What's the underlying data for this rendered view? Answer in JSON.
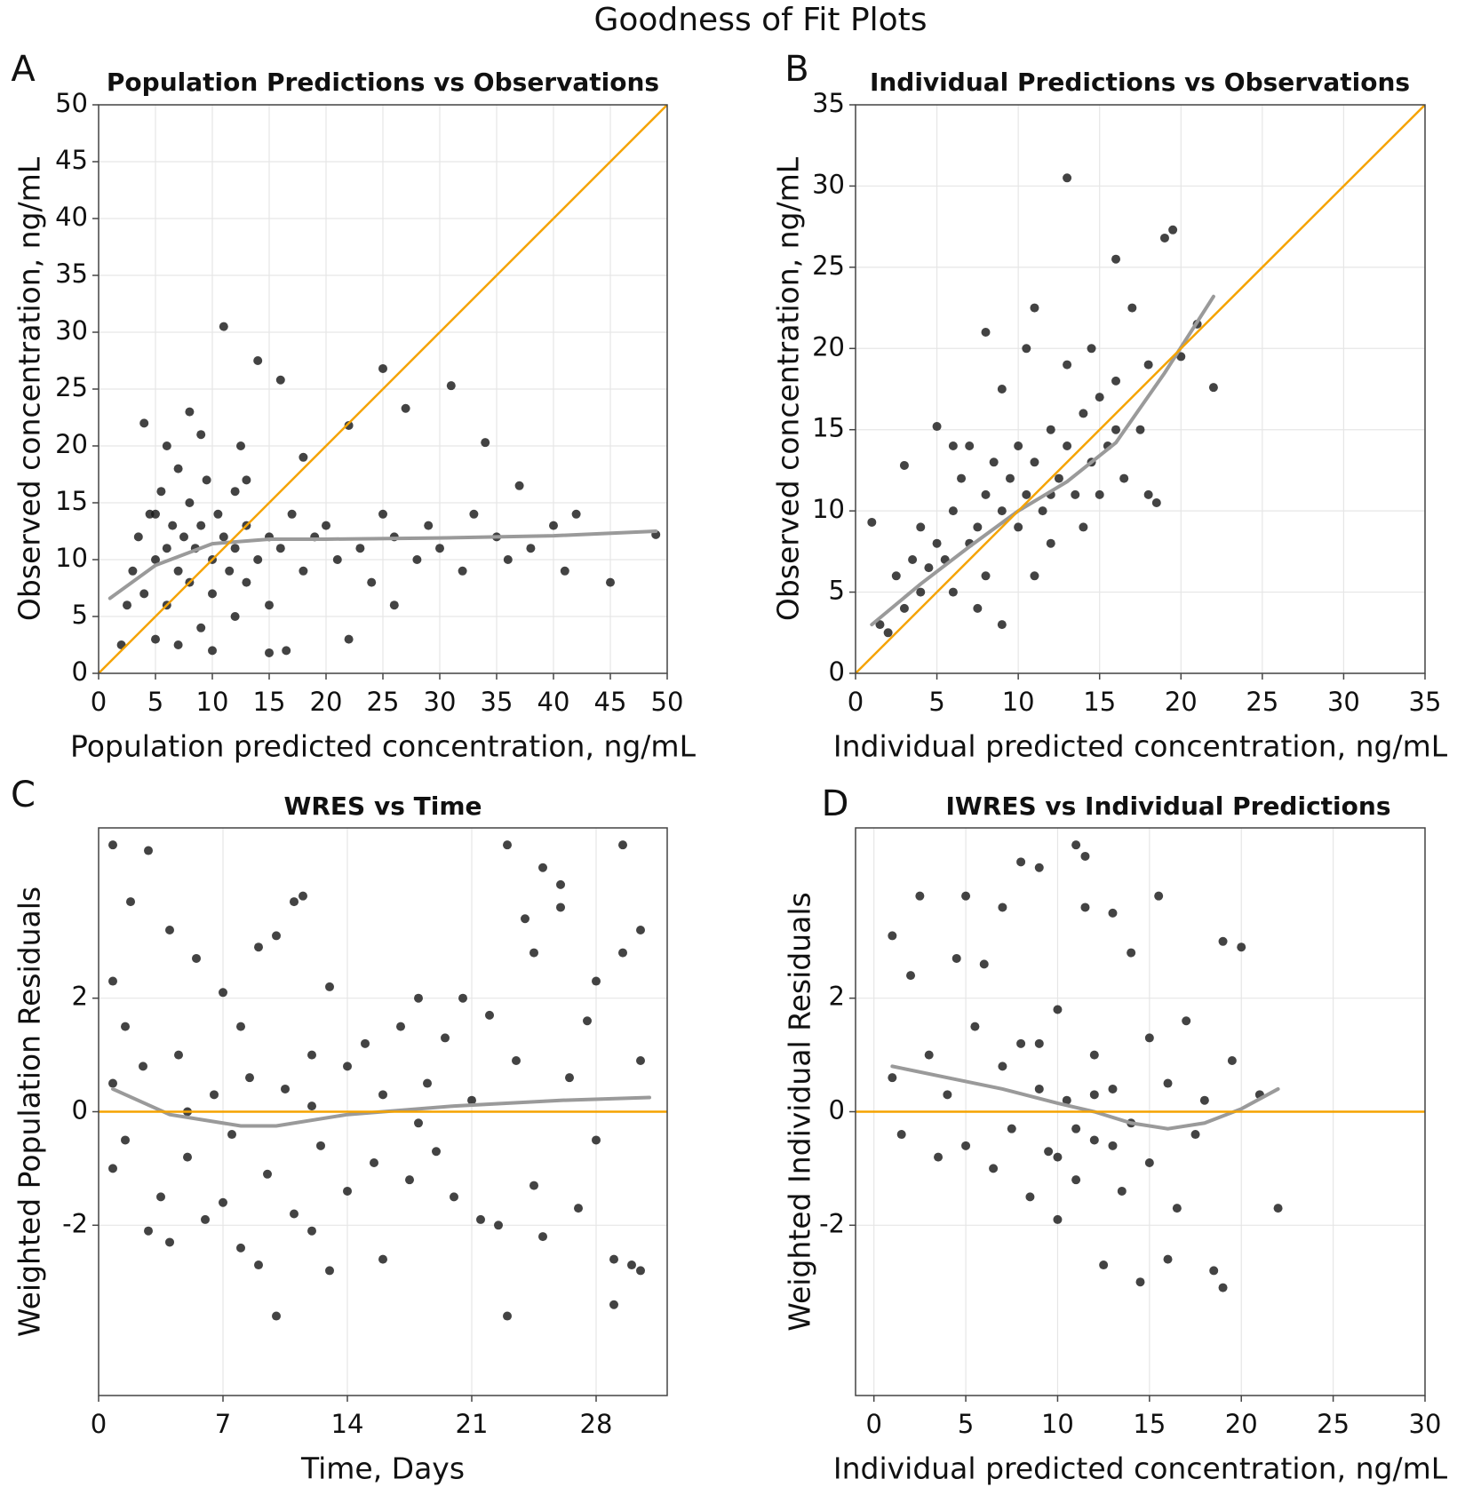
{
  "title": "Goodness of Fit Plots",
  "chart_data": [
    {
      "type": "scatter",
      "panel": "A",
      "title": "Population Predictions vs Observations",
      "xlabel": "Population predicted concentration, ng/mL",
      "ylabel": "Observed concentration, ng/mL",
      "xlim": [
        0,
        50
      ],
      "ylim": [
        0,
        50
      ],
      "xticks": [
        0,
        5,
        10,
        15,
        20,
        25,
        30,
        35,
        40,
        45,
        50
      ],
      "yticks": [
        0,
        5,
        10,
        15,
        20,
        25,
        30,
        35,
        40,
        45,
        50
      ],
      "grid": true,
      "point_color": "#1a1a1a",
      "reference_line": "identity",
      "reference_color": "#f5a300",
      "x": [
        2,
        3,
        3.5,
        4,
        4.5,
        5,
        5,
        5.5,
        6,
        6,
        6.5,
        7,
        7,
        7.5,
        8,
        8,
        8.5,
        9,
        9,
        9.5,
        10,
        10,
        10.5,
        11,
        11,
        11.5,
        12,
        12,
        12.5,
        13,
        13,
        14,
        14,
        15,
        15,
        16,
        16,
        17,
        18,
        19,
        20,
        21,
        22,
        23,
        24,
        25,
        25,
        26,
        27,
        28,
        29,
        30,
        31,
        32,
        33,
        34,
        35,
        36,
        37,
        38,
        40,
        41,
        42,
        45,
        49,
        16.5,
        2.5,
        4,
        6,
        8,
        10,
        12,
        7,
        9,
        5,
        13,
        18,
        22,
        15,
        26
      ],
      "y": [
        2.5,
        9,
        12,
        7,
        14,
        10,
        3,
        16,
        11,
        6,
        13,
        9,
        18,
        12,
        8,
        15,
        11,
        13,
        4,
        17,
        10,
        7,
        14,
        12,
        30.5,
        9,
        16,
        11,
        20,
        8,
        13,
        10,
        27.5,
        12,
        6,
        11,
        25.8,
        14,
        9,
        12,
        13,
        10,
        21.8,
        11,
        8,
        14,
        26.8,
        12,
        23.3,
        10,
        13,
        11,
        25.3,
        9,
        14,
        20.3,
        12,
        10,
        16.5,
        11,
        13,
        9,
        14,
        8,
        12.2,
        2,
        6,
        22,
        20,
        23,
        2,
        5,
        2.5,
        21,
        14,
        17,
        19,
        3,
        1.8,
        6
      ],
      "smooth": {
        "color": "#9a9a9a",
        "x": [
          1,
          5,
          10,
          15,
          20,
          30,
          40,
          49
        ],
        "y": [
          6.6,
          9.5,
          11.4,
          11.8,
          11.8,
          11.9,
          12.1,
          12.5
        ]
      }
    },
    {
      "type": "scatter",
      "panel": "B",
      "title": "Individual Predictions vs Observations",
      "xlabel": "Individual predicted concentration, ng/mL",
      "ylabel": "Observed concentration, ng/mL",
      "xlim": [
        0,
        35
      ],
      "ylim": [
        0,
        35
      ],
      "xticks": [
        0,
        5,
        10,
        15,
        20,
        25,
        30,
        35
      ],
      "yticks": [
        0,
        5,
        10,
        15,
        20,
        25,
        30,
        35
      ],
      "grid": true,
      "point_color": "#1a1a1a",
      "reference_line": "identity",
      "reference_color": "#f5a300",
      "x": [
        1,
        1.5,
        2,
        2.5,
        3,
        3,
        3.5,
        4,
        4,
        4.5,
        5,
        5,
        5.5,
        6,
        6,
        6.5,
        7,
        7,
        7.5,
        8,
        8,
        8.5,
        9,
        9,
        9.5,
        10,
        10,
        10.5,
        11,
        11,
        11.5,
        12,
        12,
        12.5,
        13,
        13,
        13.5,
        14,
        14,
        14.5,
        15,
        15,
        15.5,
        16,
        16,
        16.5,
        17,
        17.5,
        18,
        18,
        19,
        19.5,
        20,
        22,
        21,
        9,
        6,
        11,
        13,
        10.5,
        8,
        7.5,
        12,
        14.5,
        16,
        18.5
      ],
      "y": [
        9.3,
        3,
        2.5,
        6,
        4,
        12.8,
        7,
        5,
        9,
        6.5,
        8,
        15.2,
        7,
        10,
        5,
        12,
        8,
        14,
        9,
        11,
        6,
        13,
        10,
        17.5,
        12,
        9,
        14,
        11,
        13,
        22.5,
        10,
        15,
        8,
        12,
        14,
        30.5,
        11,
        16,
        9,
        13,
        17,
        11,
        14,
        18,
        25.5,
        12,
        22.5,
        15,
        19,
        11,
        26.8,
        27.3,
        19.5,
        17.6,
        21.5,
        3,
        14,
        6,
        19,
        20,
        21,
        4,
        11,
        20,
        15,
        10.5
      ],
      "smooth": {
        "color": "#9a9a9a",
        "x": [
          1,
          4,
          7,
          10,
          13,
          16,
          19,
          22
        ],
        "y": [
          3,
          5.5,
          7.8,
          10,
          11.8,
          14.2,
          18.5,
          23.2
        ]
      }
    },
    {
      "type": "scatter",
      "panel": "C",
      "title": "WRES vs Time",
      "xlabel": "Time, Days",
      "ylabel": "Weighted Population Residuals",
      "xlim": [
        0,
        32
      ],
      "ylim": [
        -5,
        5
      ],
      "xticks": [
        0,
        7,
        14,
        21,
        28
      ],
      "yticks": [
        -2,
        0,
        2
      ],
      "grid": true,
      "point_color": "#1a1a1a",
      "reference_line": "zero",
      "reference_color": "#f5a300",
      "x": [
        0.8,
        0.8,
        0.8,
        0.8,
        1.5,
        1.5,
        1.8,
        2.5,
        2.8,
        2.8,
        3.5,
        4,
        4,
        4.5,
        5,
        5.5,
        6,
        6.5,
        7,
        7,
        7.5,
        8,
        8,
        8.5,
        9,
        9,
        9.5,
        10,
        10,
        10.5,
        11,
        11,
        11.5,
        12,
        12,
        12.5,
        13,
        13,
        14,
        14,
        15,
        15.5,
        16,
        16,
        17,
        17.5,
        18,
        18.5,
        19,
        19.5,
        20,
        20.5,
        21,
        21.5,
        22,
        22.5,
        23,
        23,
        23.5,
        24,
        24.5,
        24.5,
        25,
        25,
        26,
        26,
        26.5,
        27,
        27.5,
        28,
        28,
        29,
        29,
        29.5,
        29.5,
        30,
        30.5,
        30.5,
        30.5,
        5,
        18,
        12
      ],
      "y": [
        4.7,
        2.3,
        0.5,
        -1,
        1.5,
        -0.5,
        3.7,
        0.8,
        4.6,
        -2.1,
        -1.5,
        3.2,
        -2.3,
        1,
        -0.8,
        2.7,
        -1.9,
        0.3,
        2.1,
        -1.6,
        -0.4,
        1.5,
        -2.4,
        0.6,
        -2.7,
        2.9,
        -1.1,
        3.1,
        -3.6,
        0.4,
        3.7,
        -1.8,
        3.8,
        1,
        -2.1,
        -0.6,
        -2.8,
        2.2,
        0.8,
        -1.4,
        1.2,
        -0.9,
        -2.6,
        0.3,
        1.5,
        -1.2,
        2,
        0.5,
        -0.7,
        1.3,
        -1.5,
        2,
        0.2,
        -1.9,
        1.7,
        -2,
        4.7,
        -3.6,
        0.9,
        3.4,
        2.8,
        -1.3,
        4.3,
        -2.2,
        4,
        3.6,
        0.6,
        -1.7,
        1.6,
        2.3,
        -0.5,
        -2.6,
        -3.4,
        4.7,
        2.8,
        -2.7,
        3.2,
        -2.8,
        0.9,
        0,
        -0.2,
        0.1
      ],
      "smooth": {
        "color": "#9a9a9a",
        "x": [
          0.8,
          4,
          8,
          10,
          14,
          20,
          26,
          31
        ],
        "y": [
          0.4,
          -0.05,
          -0.25,
          -0.25,
          -0.05,
          0.1,
          0.2,
          0.25
        ]
      }
    },
    {
      "type": "scatter",
      "panel": "D",
      "title": "IWRES vs Individual Predictions",
      "xlabel": "Individual predicted concentration, ng/mL",
      "ylabel": "Weighted Individual Residuals",
      "xlim": [
        -1,
        30
      ],
      "ylim": [
        -5,
        5
      ],
      "xticks": [
        0,
        5,
        10,
        15,
        20,
        25,
        30
      ],
      "yticks": [
        -2,
        0,
        2
      ],
      "grid": true,
      "point_color": "#1a1a1a",
      "reference_line": "zero",
      "reference_color": "#f5a300",
      "x": [
        1,
        1,
        1.5,
        2,
        2.5,
        3,
        3.5,
        4,
        4.5,
        5,
        5,
        5.5,
        6,
        6.5,
        7,
        7,
        7.5,
        8,
        8,
        8.5,
        9,
        9,
        9.5,
        10,
        10,
        10.5,
        11,
        11,
        11.5,
        12,
        12,
        12.5,
        13,
        13,
        13.5,
        14,
        14,
        14.5,
        15,
        15,
        15.5,
        16,
        16,
        16.5,
        17,
        17.5,
        18,
        18.5,
        19,
        19,
        19.5,
        20,
        21,
        22,
        11,
        12,
        10,
        13,
        9,
        11.5
      ],
      "y": [
        3.1,
        0.6,
        -0.4,
        2.4,
        3.8,
        1,
        -0.8,
        0.3,
        2.7,
        3.8,
        -0.6,
        1.5,
        2.6,
        -1,
        0.8,
        3.6,
        -0.3,
        1.2,
        4.4,
        -1.5,
        0.4,
        4.3,
        -0.7,
        1.8,
        -1.9,
        0.2,
        4.7,
        -1.2,
        3.6,
        1,
        -0.5,
        -2.7,
        3.5,
        0.4,
        -1.4,
        2.8,
        -0.2,
        -3,
        1.3,
        -0.9,
        3.8,
        -2.6,
        0.5,
        -1.7,
        1.6,
        -0.4,
        0.2,
        -2.8,
        -3.1,
        3,
        0.9,
        2.9,
        0.3,
        -1.7,
        -0.3,
        0.3,
        -0.8,
        -0.6,
        1.2,
        4.5
      ],
      "smooth": {
        "color": "#9a9a9a",
        "x": [
          1,
          4,
          7,
          10,
          12,
          14,
          16,
          18,
          20,
          22
        ],
        "y": [
          0.8,
          0.6,
          0.4,
          0.15,
          0,
          -0.2,
          -0.3,
          -0.2,
          0.05,
          0.4
        ]
      }
    }
  ]
}
